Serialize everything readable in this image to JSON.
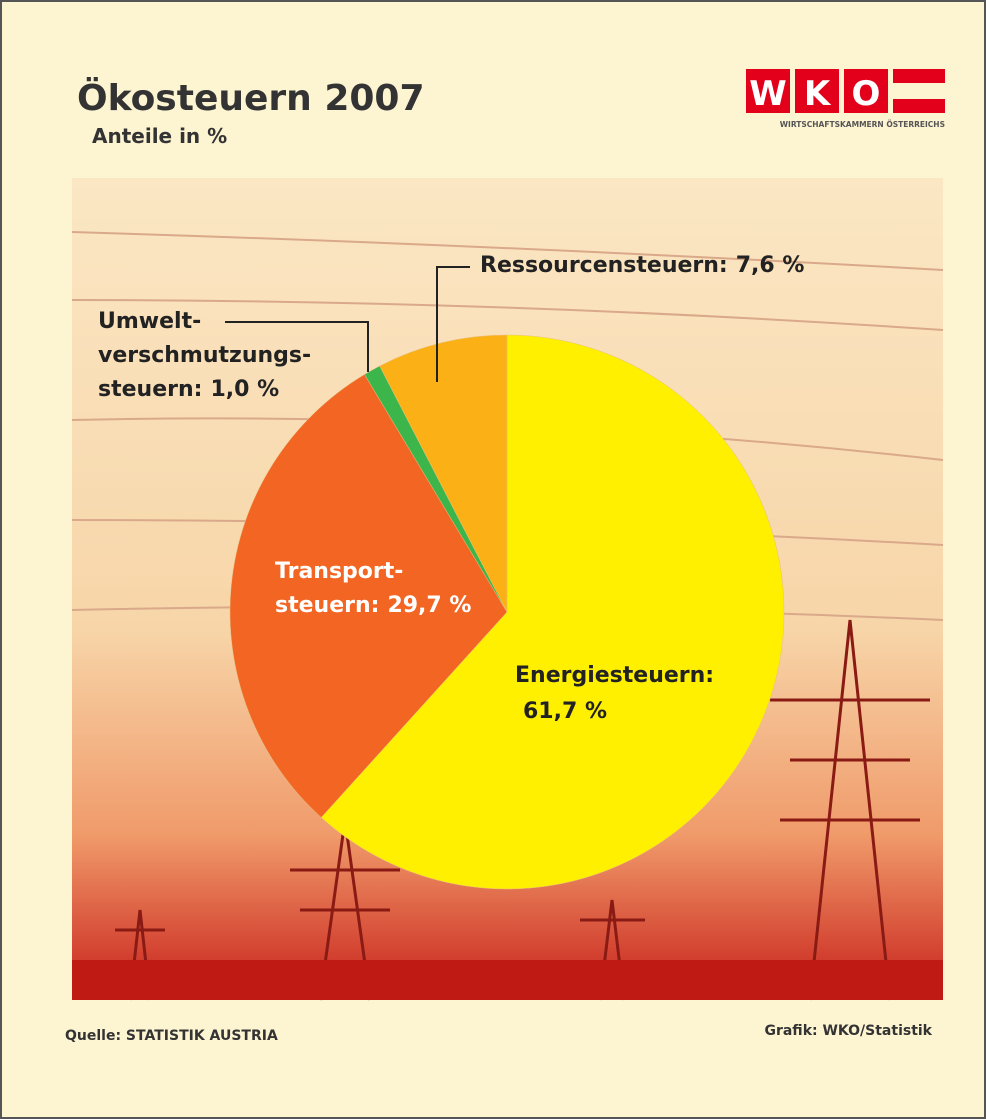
{
  "chart_data": {
    "type": "pie",
    "title": "Ökosteuern 2007",
    "subtitle": "Anteile in %",
    "categories": [
      [
        "Energiesteuern:"
      ],
      [
        "Transport-",
        "steuern:"
      ],
      [
        "Umwelt-",
        "verschmutzungs-",
        "steuern:"
      ],
      [
        "Ressourcensteuern:"
      ]
    ],
    "values": [
      61.7,
      29.7,
      1.0,
      7.6
    ],
    "value_labels": [
      "61,7 %",
      "29,7 %",
      "1,0 %",
      "7,6 %"
    ],
    "colors": [
      "#fff000",
      "#f26522",
      "#3cb54a",
      "#fbb116"
    ],
    "source": "Quelle: STATISTIK AUSTRIA",
    "credit": "Grafik: WKO/Statistik"
  },
  "logo": {
    "letters": [
      "W",
      "K",
      "O"
    ],
    "caption": "WIRTSCHAFTSKAMMERN ÖSTERREICHS"
  }
}
